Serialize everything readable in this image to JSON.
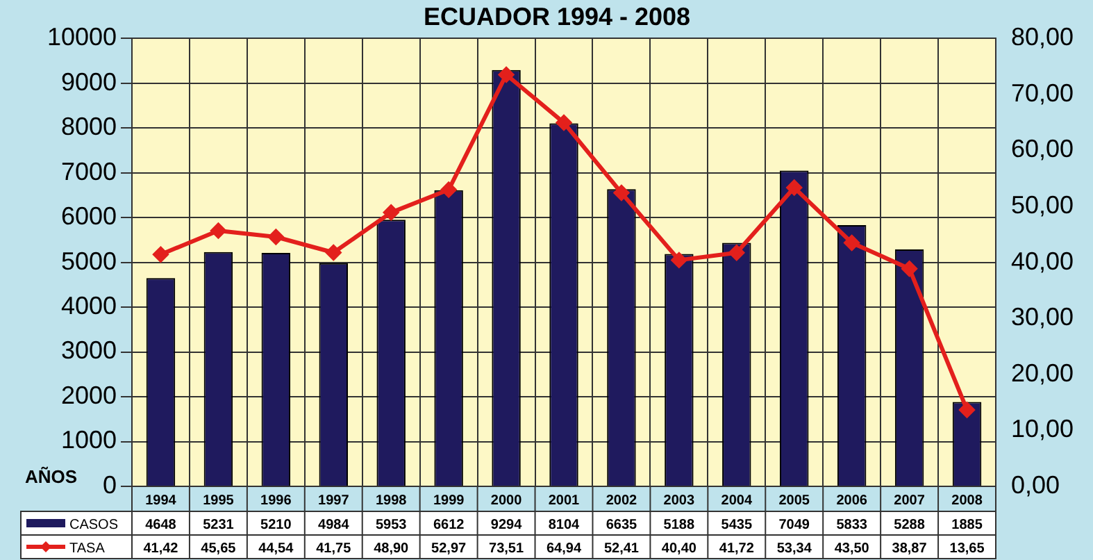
{
  "chart_data": {
    "type": "bar",
    "title": "ECUADOR 1994 - 2008",
    "xlabel": "AÑOS",
    "categories": [
      "1994",
      "1995",
      "1996",
      "1997",
      "1998",
      "1999",
      "2000",
      "2001",
      "2002",
      "2003",
      "2004",
      "2005",
      "2006",
      "2007",
      "2008"
    ],
    "series": [
      {
        "name": "CASOS",
        "color": "#1f1a5e",
        "values": [
          4648,
          5231,
          5210,
          4984,
          5953,
          6612,
          9294,
          8104,
          6635,
          5188,
          5435,
          7049,
          5833,
          5288,
          1885
        ],
        "value_labels": [
          "4648",
          "5231",
          "5210",
          "4984",
          "5953",
          "6612",
          "9294",
          "8104",
          "6635",
          "5188",
          "5435",
          "7049",
          "5833",
          "5288",
          "1885"
        ]
      },
      {
        "name": "TASA",
        "type": "line",
        "axis": "y2",
        "color": "#e3201c",
        "marker": "diamond",
        "values": [
          41.42,
          45.65,
          44.54,
          41.75,
          48.9,
          52.97,
          73.51,
          64.94,
          52.41,
          40.4,
          41.72,
          53.34,
          43.5,
          38.87,
          13.65
        ],
        "value_labels": [
          "41,42",
          "45,65",
          "44,54",
          "41,75",
          "48,90",
          "52,97",
          "73,51",
          "64,94",
          "52,41",
          "40,40",
          "41,72",
          "53,34",
          "43,50",
          "38,87",
          "13,65"
        ]
      }
    ],
    "ylim": [
      0,
      10000
    ],
    "yticks": [
      0,
      1000,
      2000,
      3000,
      4000,
      5000,
      6000,
      7000,
      8000,
      9000,
      10000
    ],
    "y2lim": [
      0,
      80
    ],
    "y2ticks": [
      {
        "value": 0,
        "label": "0,00"
      },
      {
        "value": 10,
        "label": "10,00"
      },
      {
        "value": 20,
        "label": "20,00"
      },
      {
        "value": 30,
        "label": "30,00"
      },
      {
        "value": 40,
        "label": "40,00"
      },
      {
        "value": 50,
        "label": "50,00"
      },
      {
        "value": 60,
        "label": "60,00"
      },
      {
        "value": 70,
        "label": "70,00"
      },
      {
        "value": 80,
        "label": "80,00"
      }
    ],
    "grid": true,
    "legend": "bottom left"
  }
}
